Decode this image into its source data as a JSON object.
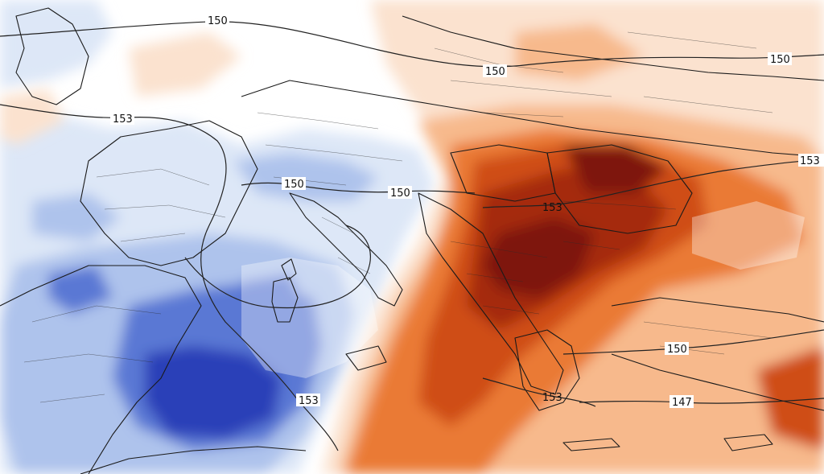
{
  "map": {
    "contour_labels": [
      "150",
      "150",
      "150",
      "153",
      "150",
      "150",
      "153",
      "153",
      "150",
      "153",
      "153",
      "147"
    ],
    "colors": {
      "cold_deep": "#2a3fb8",
      "cold_mid": "#5a78d4",
      "cold_light": "#aec3ec",
      "cold_pale": "#dde7f7",
      "warm_pale": "#fbe2cf",
      "warm_light": "#f7b98c",
      "warm_mid": "#ea7a36",
      "warm_strong": "#cf4d12",
      "warm_deep": "#a52a0c",
      "warm_extreme": "#7e1208",
      "border": "#1a1a1a",
      "contour": "#222222"
    }
  }
}
